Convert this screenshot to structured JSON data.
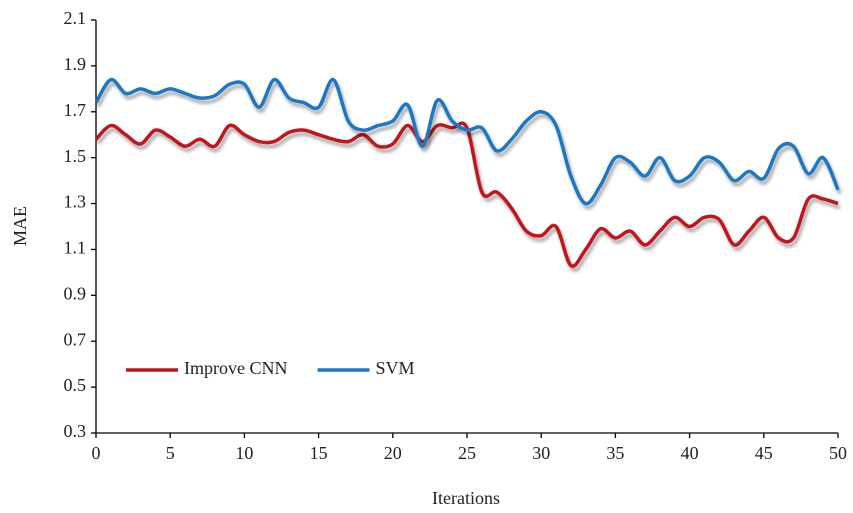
{
  "chart_data": {
    "type": "line",
    "x_label": "Iterations",
    "y_label": "MAE",
    "x": [
      0,
      1,
      2,
      3,
      4,
      5,
      6,
      7,
      8,
      9,
      10,
      11,
      12,
      13,
      14,
      15,
      16,
      17,
      18,
      19,
      20,
      21,
      22,
      23,
      24,
      25,
      26,
      27,
      28,
      29,
      30,
      31,
      32,
      33,
      34,
      35,
      36,
      37,
      38,
      39,
      40,
      41,
      42,
      43,
      44,
      45,
      46,
      47,
      48,
      49,
      50
    ],
    "series": [
      {
        "name": "Improve CNN",
        "color": "#c0141c",
        "values": [
          1.58,
          1.64,
          1.6,
          1.56,
          1.62,
          1.59,
          1.55,
          1.58,
          1.55,
          1.64,
          1.6,
          1.57,
          1.57,
          1.61,
          1.62,
          1.6,
          1.58,
          1.57,
          1.6,
          1.55,
          1.56,
          1.64,
          1.57,
          1.64,
          1.63,
          1.63,
          1.35,
          1.35,
          1.28,
          1.18,
          1.16,
          1.2,
          1.03,
          1.1,
          1.19,
          1.15,
          1.18,
          1.12,
          1.18,
          1.24,
          1.2,
          1.24,
          1.23,
          1.12,
          1.18,
          1.24,
          1.15,
          1.15,
          1.32,
          1.32,
          1.3
        ]
      },
      {
        "name": "SVM",
        "color": "#1f77c4",
        "values": [
          1.74,
          1.84,
          1.78,
          1.8,
          1.78,
          1.8,
          1.78,
          1.76,
          1.77,
          1.82,
          1.82,
          1.72,
          1.84,
          1.76,
          1.74,
          1.72,
          1.84,
          1.66,
          1.62,
          1.64,
          1.66,
          1.73,
          1.55,
          1.75,
          1.66,
          1.62,
          1.63,
          1.53,
          1.58,
          1.66,
          1.7,
          1.64,
          1.42,
          1.3,
          1.38,
          1.5,
          1.48,
          1.42,
          1.5,
          1.4,
          1.42,
          1.5,
          1.48,
          1.4,
          1.44,
          1.41,
          1.54,
          1.55,
          1.43,
          1.5,
          1.36
        ]
      }
    ],
    "xlim": [
      0,
      50
    ],
    "xticks": [
      0,
      5,
      10,
      15,
      20,
      25,
      30,
      35,
      40,
      45,
      50
    ],
    "ylim": [
      0.3,
      2.1
    ],
    "yticks": [
      0.3,
      0.5,
      0.7,
      0.9,
      1.1,
      1.3,
      1.5,
      1.7,
      1.9,
      2.1
    ],
    "grid": false,
    "legend": "lower left"
  }
}
